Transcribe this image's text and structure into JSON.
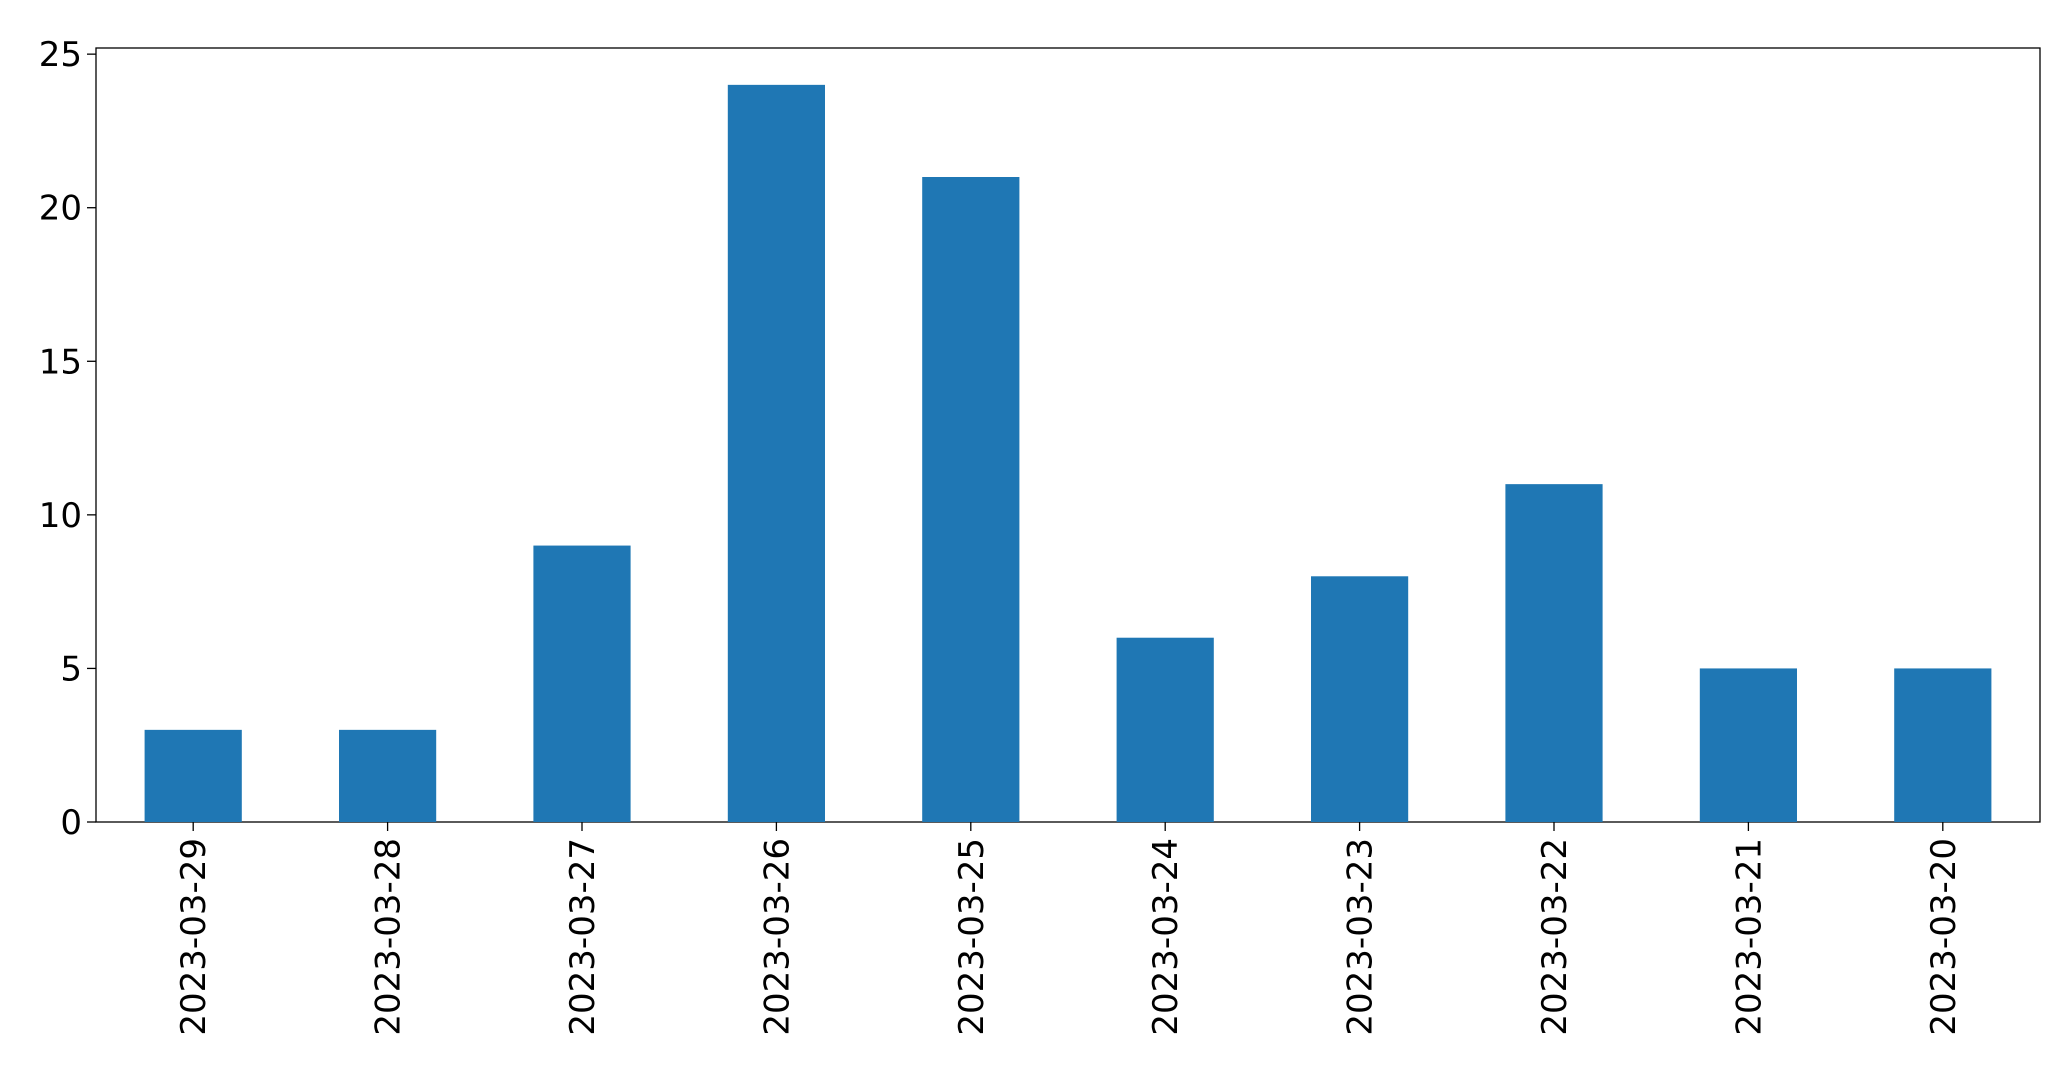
{
  "chart_data": {
    "type": "bar",
    "categories": [
      "2023-03-29",
      "2023-03-28",
      "2023-03-27",
      "2023-03-26",
      "2023-03-25",
      "2023-03-24",
      "2023-03-23",
      "2023-03-22",
      "2023-03-21",
      "2023-03-20"
    ],
    "values": [
      3,
      3,
      9,
      24,
      21,
      6,
      8,
      11,
      5,
      5
    ],
    "color": "#1f77b4",
    "ylim": [
      0,
      25.2
    ],
    "yticks": [
      0,
      5,
      10,
      15,
      20,
      25
    ],
    "grid": false
  }
}
